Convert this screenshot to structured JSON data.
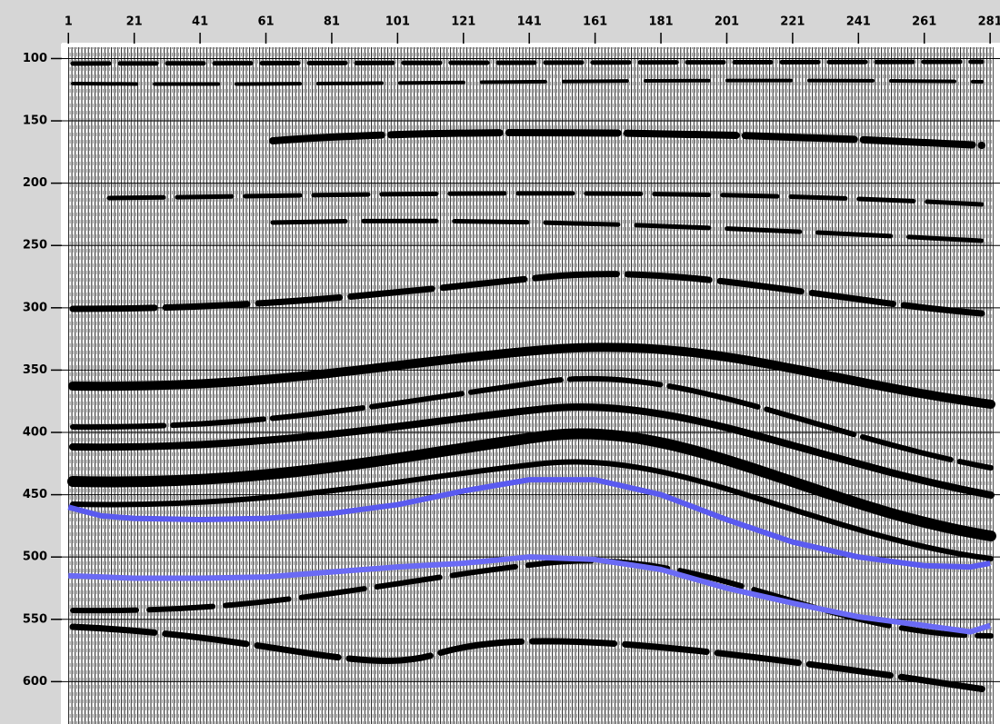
{
  "chart_data": {
    "type": "line",
    "x_axis_position": "top",
    "y_inverted": true,
    "grid": true,
    "xlim": [
      -1,
      284
    ],
    "xticks": [
      1,
      21,
      41,
      61,
      81,
      101,
      121,
      141,
      161,
      181,
      201,
      221,
      241,
      261,
      281
    ],
    "ylim": [
      88,
      634
    ],
    "yticks": [
      100,
      150,
      200,
      250,
      300,
      350,
      400,
      450,
      500,
      550,
      600
    ],
    "x": [
      1,
      11,
      21,
      41,
      61,
      81,
      101,
      121,
      141,
      161,
      181,
      201,
      221,
      241,
      261,
      275,
      281
    ],
    "series": [
      {
        "color": "#5a5af0",
        "values": [
          460,
          467,
          469,
          470,
          469,
          465,
          458,
          447,
          438,
          438,
          450,
          470,
          488,
          500,
          507,
          508,
          505
        ]
      },
      {
        "color": "#6a6af5",
        "values": [
          515,
          516,
          517,
          517,
          516,
          512,
          508,
          505,
          500,
          502,
          510,
          525,
          537,
          548,
          555,
          560,
          555
        ]
      }
    ]
  }
}
